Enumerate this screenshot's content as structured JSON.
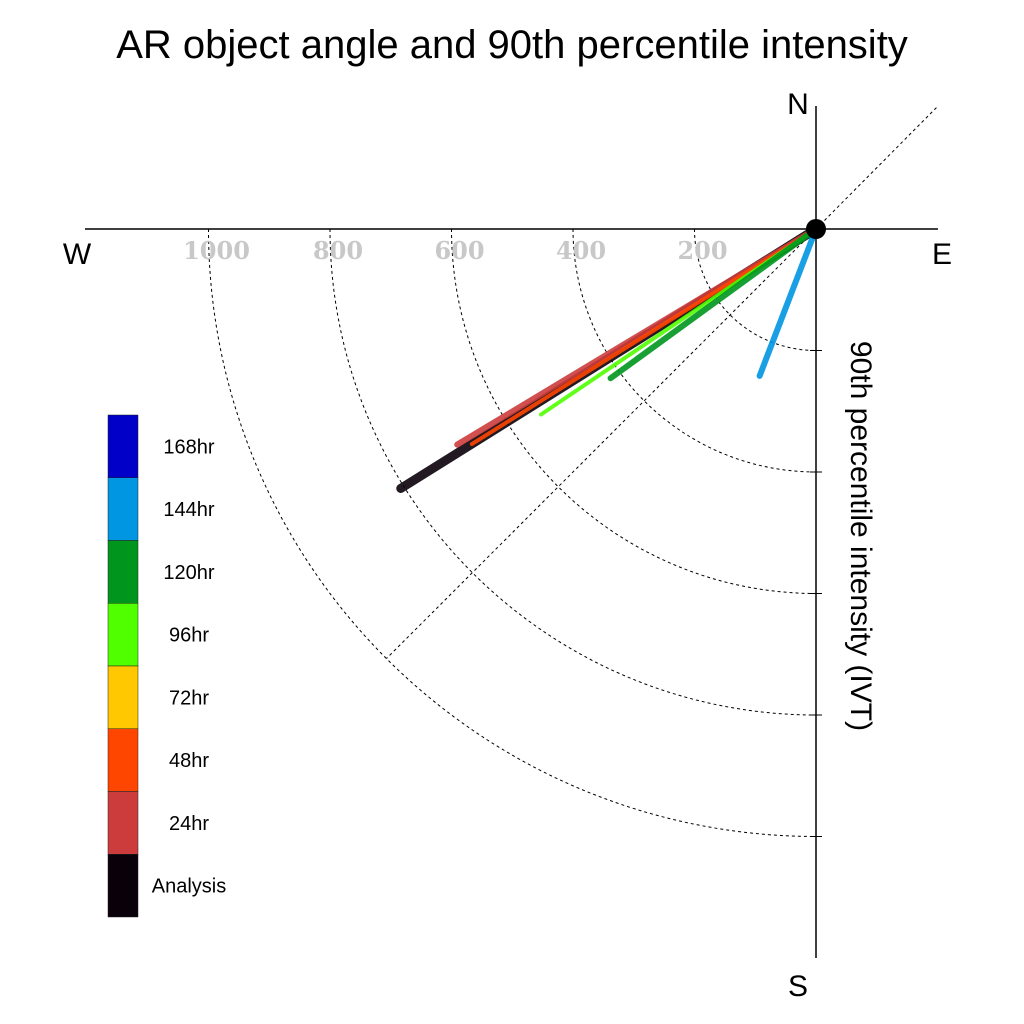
{
  "chart_data": {
    "type": "polar-quadrant",
    "title": "AR object angle and 90th percentile intensity",
    "ylabel": "90th percentile intensity (IVT)",
    "compass": {
      "north": "N",
      "south": "S",
      "east": "E",
      "west": "W"
    },
    "radial_ticks": [
      "200",
      "400",
      "600",
      "800",
      "1000"
    ],
    "radial_tick_values": [
      200,
      400,
      600,
      800,
      1000
    ],
    "radial_rings": [
      200,
      400,
      600,
      800,
      1000
    ],
    "radial_max": 1000,
    "grid": true,
    "legend_position": "left",
    "legend": [
      {
        "label": "168hr",
        "color": "#0000c8"
      },
      {
        "label": "144hr",
        "color": "#0096e1"
      },
      {
        "label": "120hr",
        "color": "#00961e"
      },
      {
        "label": "96hr",
        "color": "#50ff00"
      },
      {
        "label": "72hr",
        "color": "#ffc800"
      },
      {
        "label": "48hr",
        "color": "#ff4600"
      },
      {
        "label": "24hr",
        "color": "#cd3c3c"
      },
      {
        "label": "Analysis",
        "color": "#0a000a"
      }
    ],
    "series": [
      {
        "name": "Analysis",
        "angle_deg": 58,
        "intensity": 806,
        "color": "#0a000a",
        "width": 9
      },
      {
        "name": "24hr",
        "angle_deg": 59,
        "intensity": 689,
        "color": "#cd3c3c",
        "width": 6
      },
      {
        "name": "48hr",
        "angle_deg": 58,
        "intensity": 668,
        "color": "#ff4600",
        "width": 4
      },
      {
        "name": "96hr",
        "angle_deg": 56,
        "intensity": 546,
        "color": "#50ff00",
        "width": 4
      },
      {
        "name": "120hr",
        "angle_deg": 54,
        "intensity": 418,
        "color": "#00961e",
        "width": 6
      },
      {
        "name": "144hr",
        "angle_deg": 21,
        "intensity": 259,
        "color": "#0096e1",
        "width": 6
      }
    ]
  }
}
